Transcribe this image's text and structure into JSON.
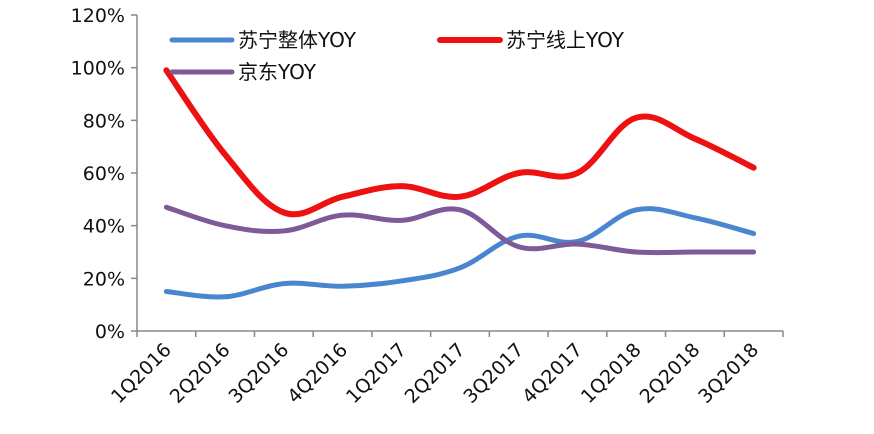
{
  "chart_data": {
    "type": "line",
    "title": "",
    "xlabel": "",
    "ylabel": "",
    "categories": [
      "1Q2016",
      "2Q2016",
      "3Q2016",
      "4Q2016",
      "1Q2017",
      "2Q2017",
      "3Q2017",
      "4Q2017",
      "1Q2018",
      "2Q2018",
      "3Q2018"
    ],
    "ylim": [
      0,
      120
    ],
    "yticks": [
      "0%",
      "20%",
      "40%",
      "60%",
      "80%",
      "100%",
      "120%"
    ],
    "grid": false,
    "legend_position": "top",
    "series": [
      {
        "name": "苏宁整体YOY",
        "color": "#4a86d0",
        "values": [
          15,
          13,
          18,
          17,
          19,
          24,
          36,
          34,
          46,
          43,
          37
        ]
      },
      {
        "name": "苏宁线上YOY",
        "color": "#ee1111",
        "values": [
          99,
          67,
          45,
          51,
          55,
          51,
          60,
          60,
          81,
          73,
          62
        ]
      },
      {
        "name": "京东YOY",
        "color": "#7d5a98",
        "values": [
          47,
          40,
          38,
          44,
          42,
          46,
          32,
          33,
          30,
          30,
          30
        ]
      }
    ]
  }
}
